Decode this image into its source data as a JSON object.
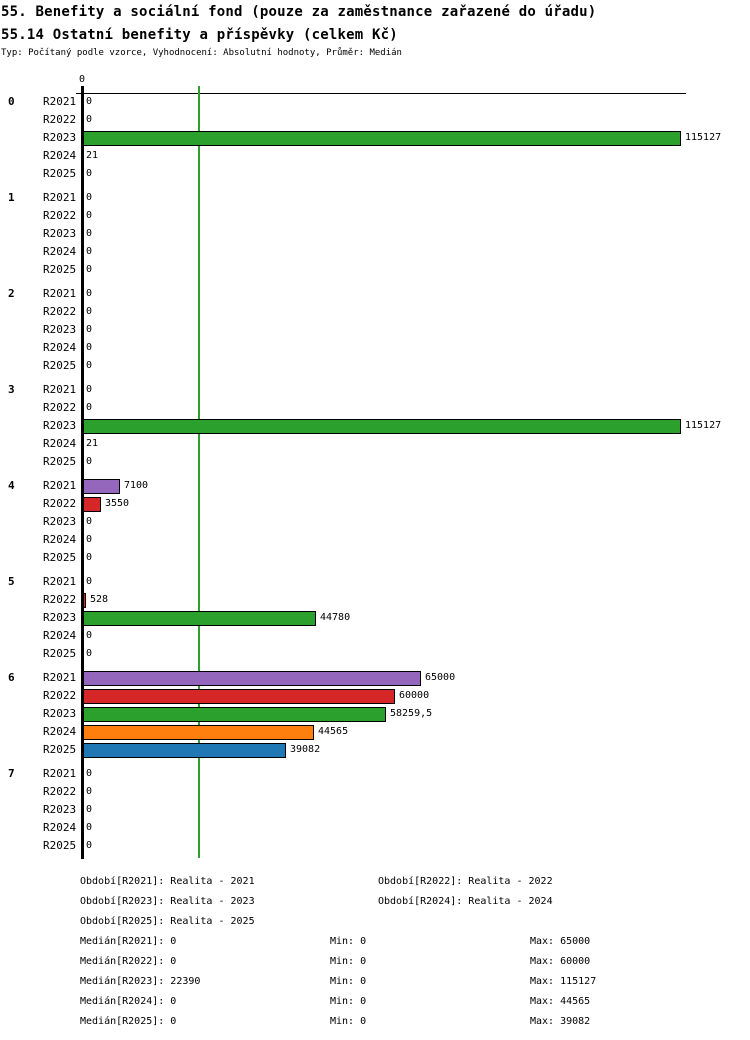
{
  "header": {
    "title_line1": "55. Benefity a sociální fond (pouze za zaměstnance zařazené do úřadu)",
    "title_line2": "55.14 Ostatní benefity a příspěvky (celkem Kč)",
    "meta": "Typ: Počítaný podle vzorce, Vyhodnocení: Absolutní hodnoty, Průměr: Medián"
  },
  "chart_data": {
    "type": "bar",
    "orientation": "horizontal",
    "title": "55.14 Ostatní benefity a příspěvky (celkem Kč)",
    "x_axis": {
      "min": 0,
      "max": 115127,
      "tick_labels": [
        "0"
      ],
      "tick_zero": "0"
    },
    "grid": false,
    "series_labels": [
      "R2021",
      "R2022",
      "R2023",
      "R2024",
      "R2025"
    ],
    "series_colors": {
      "R2021": "#9467bd",
      "R2022": "#d62728",
      "R2023": "#2ca02c",
      "R2024": "#ff7f0e",
      "R2025": "#1f77b4"
    },
    "median_line": {
      "series": "R2023",
      "value": 22390,
      "color": "#2ca02c"
    },
    "groups": [
      {
        "label": "0",
        "values": [
          0,
          0,
          115127,
          21,
          0
        ],
        "display": [
          "0",
          "0",
          "115127",
          "21",
          "0"
        ]
      },
      {
        "label": "1",
        "values": [
          0,
          0,
          0,
          0,
          0
        ],
        "display": [
          "0",
          "0",
          "0",
          "0",
          "0"
        ]
      },
      {
        "label": "2",
        "values": [
          0,
          0,
          0,
          0,
          0
        ],
        "display": [
          "0",
          "0",
          "0",
          "0",
          "0"
        ]
      },
      {
        "label": "3",
        "values": [
          0,
          0,
          115127,
          21,
          0
        ],
        "display": [
          "0",
          "0",
          "115127",
          "21",
          "0"
        ]
      },
      {
        "label": "4",
        "values": [
          7100,
          3550,
          0,
          0,
          0
        ],
        "display": [
          "7100",
          "3550",
          "0",
          "0",
          "0"
        ]
      },
      {
        "label": "5",
        "values": [
          0,
          528,
          44780,
          0,
          0
        ],
        "display": [
          "0",
          "528",
          "44780",
          "0",
          "0"
        ]
      },
      {
        "label": "6",
        "values": [
          65000,
          60000,
          58259.5,
          44565,
          39082
        ],
        "display": [
          "65000",
          "60000",
          "58259,5",
          "44565",
          "39082"
        ]
      },
      {
        "label": "7",
        "values": [
          0,
          0,
          0,
          0,
          0
        ],
        "display": [
          "0",
          "0",
          "0",
          "0",
          "0"
        ]
      }
    ],
    "legend_periods": [
      {
        "text": "Období[R2021]: Realita - 2021",
        "row": 0,
        "col": 0
      },
      {
        "text": "Období[R2022]: Realita - 2022",
        "row": 0,
        "col": 1
      },
      {
        "text": "Období[R2023]: Realita - 2023",
        "row": 1,
        "col": 0
      },
      {
        "text": "Období[R2024]: Realita - 2024",
        "row": 1,
        "col": 1
      },
      {
        "text": "Období[R2025]: Realita - 2025",
        "row": 2,
        "col": 0
      }
    ],
    "legend_stats": [
      {
        "median": "Medián[R2021]: 0",
        "min": "Min: 0",
        "max": "Max: 65000"
      },
      {
        "median": "Medián[R2022]: 0",
        "min": "Min: 0",
        "max": "Max: 60000"
      },
      {
        "median": "Medián[R2023]: 22390",
        "min": "Min: 0",
        "max": "Max: 115127"
      },
      {
        "median": "Medián[R2024]: 0",
        "min": "Min: 0",
        "max": "Max: 44565"
      },
      {
        "median": "Medián[R2025]: 0",
        "min": "Min: 0",
        "max": "Max: 39082"
      }
    ]
  }
}
